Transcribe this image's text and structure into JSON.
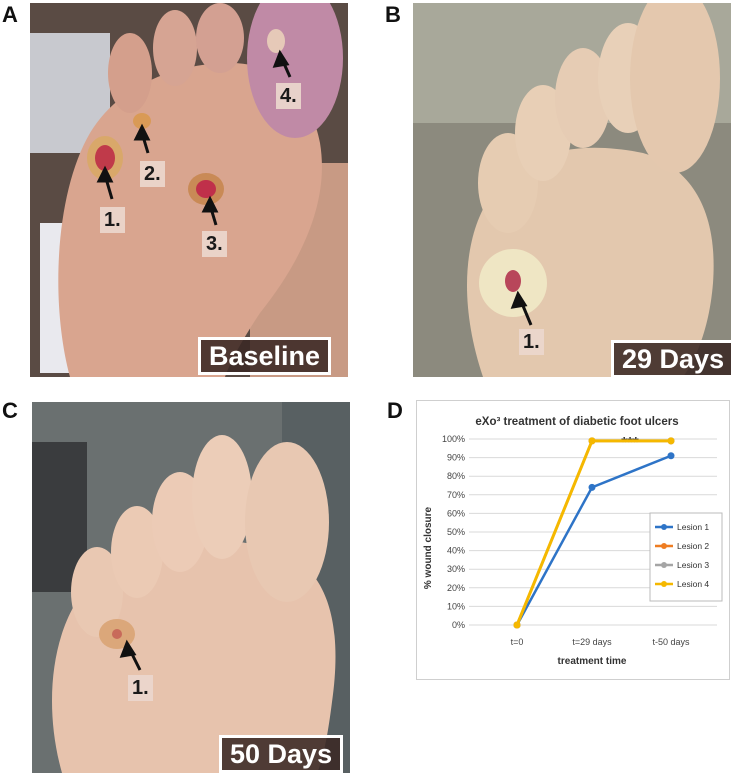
{
  "panels": {
    "a": {
      "letter": "A",
      "caption": "Baseline",
      "lesions": [
        "1.",
        "2.",
        "3.",
        "4."
      ]
    },
    "b": {
      "letter": "B",
      "caption": "29 Days",
      "lesions": [
        "1."
      ]
    },
    "c": {
      "letter": "C",
      "caption": "50 Days",
      "lesions": [
        "1."
      ]
    },
    "d": {
      "letter": "D"
    }
  },
  "colors": {
    "lesion1": "#2e74c7",
    "lesion2": "#ee7d22",
    "lesion3": "#a5a5a5",
    "lesion4": "#f5b800",
    "grid": "#d9d9d9"
  },
  "chart_data": {
    "type": "line",
    "title": "eXo³ treatment of diabetic foot ulcers",
    "xlabel": "treatment time",
    "ylabel": "% wound closure",
    "categories": [
      "t=0",
      "t=29 days",
      "t-50 days"
    ],
    "yticks": [
      "0%",
      "10%",
      "20%",
      "30%",
      "40%",
      "50%",
      "60%",
      "70%",
      "80%",
      "90%",
      "100%"
    ],
    "ylim": [
      0,
      100
    ],
    "grid": true,
    "legend_position": "right",
    "annotation": "***",
    "series": [
      {
        "name": "Lesion 1",
        "values": [
          0,
          74,
          91
        ]
      },
      {
        "name": "Lesion 2",
        "values": [
          0,
          99,
          99
        ]
      },
      {
        "name": "Lesion 3",
        "values": [
          0,
          99,
          99
        ]
      },
      {
        "name": "Lesion 4",
        "values": [
          0,
          99,
          99
        ]
      }
    ]
  }
}
